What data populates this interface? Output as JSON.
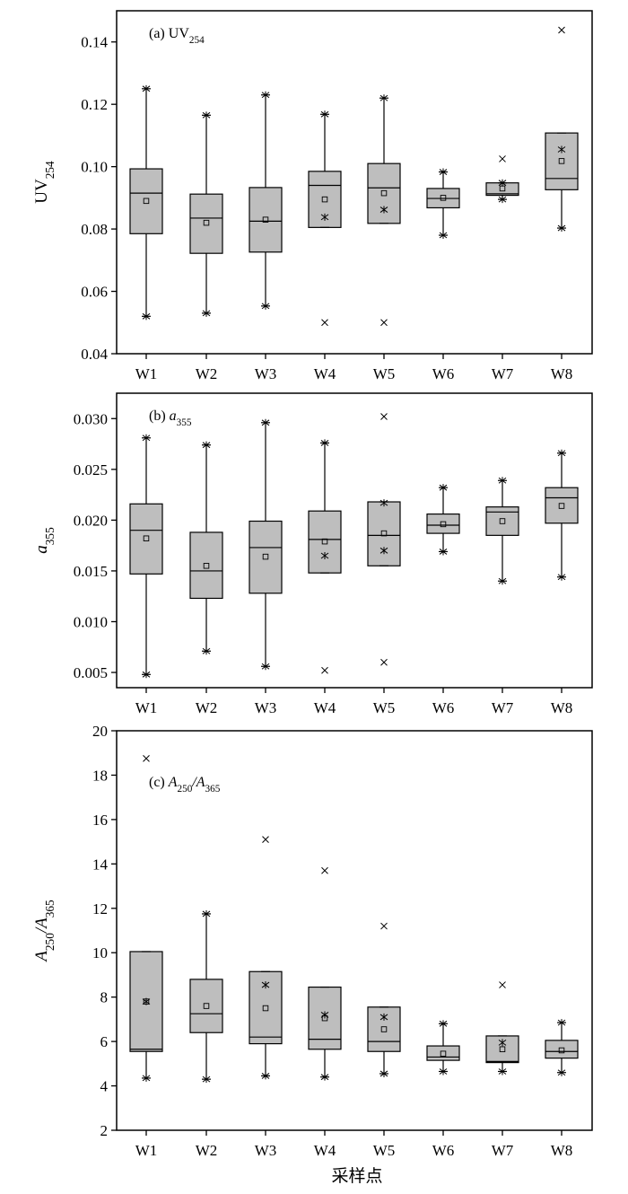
{
  "figure": {
    "x_title": "采样点"
  },
  "chart_data": [
    {
      "type": "box",
      "panel_label": "(a) UV",
      "panel_label_sub": "254",
      "ylabel": "UV",
      "ylabel_sub": "254",
      "ylabel_italic": false,
      "ylim": [
        0.04,
        0.15
      ],
      "yticks": [
        0.04,
        0.06,
        0.08,
        0.1,
        0.12,
        0.14
      ],
      "ytick_labels": [
        "0.04",
        "0.06",
        "0.08",
        "0.10",
        "0.12",
        "0.14"
      ],
      "categories": [
        "W1",
        "W2",
        "W3",
        "W4",
        "W5",
        "W6",
        "W7",
        "W8"
      ],
      "boxes": [
        {
          "min": 0.052,
          "p1": 0.052,
          "q1": 0.0785,
          "median": 0.0915,
          "q3": 0.0993,
          "max": 0.125,
          "p99": 0.125,
          "mean": 0.089,
          "outliers": []
        },
        {
          "min": 0.053,
          "p1": 0.053,
          "q1": 0.0722,
          "median": 0.0835,
          "q3": 0.0912,
          "max": 0.1165,
          "p99": 0.1165,
          "mean": 0.082,
          "outliers": []
        },
        {
          "min": 0.0553,
          "p1": 0.0553,
          "q1": 0.0726,
          "median": 0.0825,
          "q3": 0.0933,
          "max": 0.123,
          "p99": 0.123,
          "mean": 0.083,
          "outliers": []
        },
        {
          "min": 0.0805,
          "p1": 0.0838,
          "q1": 0.0805,
          "median": 0.094,
          "q3": 0.0985,
          "max": 0.1168,
          "p99": 0.1168,
          "mean": 0.0895,
          "outliers": [
            0.05
          ]
        },
        {
          "min": 0.0818,
          "p1": 0.0862,
          "q1": 0.0818,
          "median": 0.0932,
          "q3": 0.101,
          "max": 0.122,
          "p99": 0.122,
          "mean": 0.0915,
          "outliers": [
            0.05
          ]
        },
        {
          "min": 0.078,
          "p1": 0.078,
          "q1": 0.0868,
          "median": 0.0898,
          "q3": 0.093,
          "max": 0.0983,
          "p99": 0.0983,
          "mean": 0.09,
          "outliers": []
        },
        {
          "min": 0.0895,
          "p1": 0.0895,
          "q1": 0.0908,
          "median": 0.0913,
          "q3": 0.0948,
          "max": 0.0948,
          "p99": 0.0948,
          "mean": 0.093,
          "outliers": [
            0.1025
          ]
        },
        {
          "min": 0.0803,
          "p1": 0.0803,
          "q1": 0.0926,
          "median": 0.0962,
          "q3": 0.1108,
          "max": 0.1108,
          "p99": 0.1055,
          "mean": 0.1018,
          "outliers": [
            0.1438
          ]
        }
      ]
    },
    {
      "type": "box",
      "panel_label": "(b) a",
      "panel_label_sub": "355",
      "ylabel": "a",
      "ylabel_sub": "355",
      "ylabel_italic": true,
      "ylim": [
        0.0035,
        0.0325
      ],
      "yticks": [
        0.005,
        0.01,
        0.015,
        0.02,
        0.025,
        0.03
      ],
      "ytick_labels": [
        "0.005",
        "0.010",
        "0.015",
        "0.020",
        "0.025",
        "0.030"
      ],
      "categories": [
        "W1",
        "W2",
        "W3",
        "W4",
        "W5",
        "W6",
        "W7",
        "W8"
      ],
      "boxes": [
        {
          "min": 0.0048,
          "p1": 0.0048,
          "q1": 0.0147,
          "median": 0.019,
          "q3": 0.0216,
          "max": 0.0281,
          "p99": 0.0281,
          "mean": 0.0182,
          "outliers": []
        },
        {
          "min": 0.0071,
          "p1": 0.0071,
          "q1": 0.0123,
          "median": 0.015,
          "q3": 0.0188,
          "max": 0.0274,
          "p99": 0.0274,
          "mean": 0.0155,
          "outliers": []
        },
        {
          "min": 0.0056,
          "p1": 0.0056,
          "q1": 0.0128,
          "median": 0.0173,
          "q3": 0.0199,
          "max": 0.0296,
          "p99": 0.0296,
          "mean": 0.0164,
          "outliers": []
        },
        {
          "min": 0.0148,
          "p1": 0.0165,
          "q1": 0.0148,
          "median": 0.0181,
          "q3": 0.0209,
          "max": 0.0276,
          "p99": 0.0276,
          "mean": 0.0179,
          "outliers": [
            0.0052
          ]
        },
        {
          "min": 0.0155,
          "p1": 0.017,
          "q1": 0.0155,
          "median": 0.0185,
          "q3": 0.0218,
          "max": 0.0218,
          "p99": 0.0217,
          "mean": 0.0187,
          "outliers": [
            0.006,
            0.0302
          ]
        },
        {
          "min": 0.0169,
          "p1": 0.0169,
          "q1": 0.0187,
          "median": 0.0195,
          "q3": 0.0206,
          "max": 0.0232,
          "p99": 0.0232,
          "mean": 0.0196,
          "outliers": []
        },
        {
          "min": 0.014,
          "p1": 0.014,
          "q1": 0.0185,
          "median": 0.0208,
          "q3": 0.0213,
          "max": 0.0239,
          "p99": 0.0239,
          "mean": 0.0199,
          "outliers": []
        },
        {
          "min": 0.0144,
          "p1": 0.0144,
          "q1": 0.0197,
          "median": 0.0222,
          "q3": 0.0232,
          "max": 0.0266,
          "p99": 0.0266,
          "mean": 0.0214,
          "outliers": []
        }
      ]
    },
    {
      "type": "box",
      "panel_label": "(c) A",
      "panel_label_sub": "250",
      "panel_label_mid": "/A",
      "panel_label_sub2": "365",
      "ylabel": "A",
      "ylabel_sub": "250",
      "ylabel_mid": "/A",
      "ylabel_sub2": "365",
      "ylabel_italic": true,
      "ylim": [
        2,
        20
      ],
      "yticks": [
        2,
        4,
        6,
        8,
        10,
        12,
        14,
        16,
        18,
        20
      ],
      "ytick_labels": [
        "2",
        "4",
        "6",
        "8",
        "10",
        "12",
        "14",
        "16",
        "18",
        "20"
      ],
      "categories": [
        "W1",
        "W2",
        "W3",
        "W4",
        "W5",
        "W6",
        "W7",
        "W8"
      ],
      "boxes": [
        {
          "min": 4.35,
          "p1": 4.35,
          "q1": 5.55,
          "median": 5.65,
          "q3": 10.05,
          "max": 10.05,
          "p99": 7.8,
          "mean": 7.8,
          "outliers": [
            18.75
          ]
        },
        {
          "min": 4.3,
          "p1": 4.3,
          "q1": 6.4,
          "median": 7.25,
          "q3": 8.8,
          "max": 11.75,
          "p99": 11.75,
          "mean": 7.6,
          "outliers": []
        },
        {
          "min": 4.45,
          "p1": 4.45,
          "q1": 5.9,
          "median": 6.2,
          "q3": 9.15,
          "max": 9.15,
          "p99": 8.55,
          "mean": 7.5,
          "outliers": [
            15.1
          ]
        },
        {
          "min": 4.4,
          "p1": 4.4,
          "q1": 5.65,
          "median": 6.1,
          "q3": 8.45,
          "max": 8.45,
          "p99": 7.2,
          "mean": 7.05,
          "outliers": [
            13.7
          ]
        },
        {
          "min": 4.55,
          "p1": 4.55,
          "q1": 5.55,
          "median": 6.0,
          "q3": 7.55,
          "max": 7.55,
          "p99": 7.1,
          "mean": 6.55,
          "outliers": [
            11.2
          ]
        },
        {
          "min": 4.65,
          "p1": 4.65,
          "q1": 5.15,
          "median": 5.3,
          "q3": 5.8,
          "max": 6.8,
          "p99": 6.8,
          "mean": 5.45,
          "outliers": []
        },
        {
          "min": 4.65,
          "p1": 4.65,
          "q1": 5.05,
          "median": 5.1,
          "q3": 6.25,
          "max": 6.25,
          "p99": 5.95,
          "mean": 5.65,
          "outliers": [
            8.55
          ]
        },
        {
          "min": 4.6,
          "p1": 4.6,
          "q1": 5.25,
          "median": 5.55,
          "q3": 6.05,
          "max": 6.85,
          "p99": 6.85,
          "mean": 5.6,
          "outliers": []
        }
      ]
    }
  ],
  "colors": {
    "box_fill": "#bebebe",
    "stroke": "#000000",
    "background": "#ffffff"
  }
}
